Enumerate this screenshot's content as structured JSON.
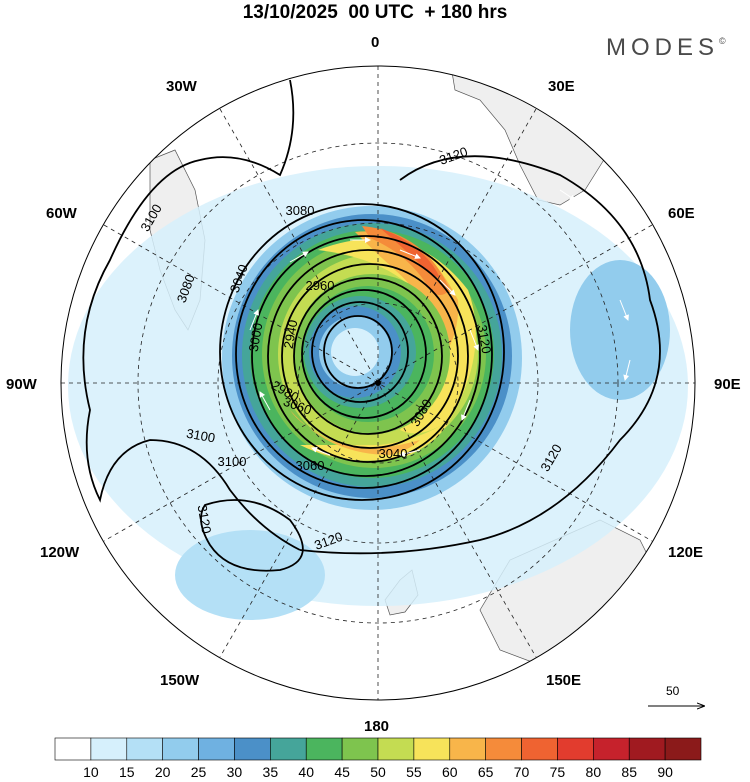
{
  "header": {
    "title": "13/10/2025  00 UTC  + 180 hrs",
    "brand": "MODES",
    "brand_mark": "©"
  },
  "longitude_labels": [
    {
      "key": "lon_0",
      "text": "0"
    },
    {
      "key": "lon_30e",
      "text": "30E"
    },
    {
      "key": "lon_60e",
      "text": "60E"
    },
    {
      "key": "lon_90e",
      "text": "90E"
    },
    {
      "key": "lon_120e",
      "text": "120E"
    },
    {
      "key": "lon_150e",
      "text": "150E"
    },
    {
      "key": "lon_180",
      "text": "180"
    },
    {
      "key": "lon_150w",
      "text": "150W"
    },
    {
      "key": "lon_120w",
      "text": "120W"
    },
    {
      "key": "lon_90w",
      "text": "90W"
    },
    {
      "key": "lon_60w",
      "text": "60W"
    },
    {
      "key": "lon_30w",
      "text": "30W"
    }
  ],
  "contour_labels": [
    "3120",
    "3080",
    "3100",
    "3080",
    "3040",
    "2960",
    "2940",
    "3060",
    "3000",
    "3120",
    "3100",
    "2980",
    "3060",
    "3040",
    "3080",
    "3100",
    "3100",
    "3120",
    "3120",
    "3120"
  ],
  "reference_vector": {
    "label": "50"
  },
  "chart_data": {
    "type": "map",
    "projection": "south polar stereographic",
    "field": "wind speed (shaded) with geopotential height contours",
    "colorbar": {
      "ticks": [
        "10",
        "15",
        "20",
        "25",
        "30",
        "35",
        "40",
        "45",
        "50",
        "55",
        "60",
        "65",
        "70",
        "75",
        "80",
        "85",
        "90"
      ],
      "colors": [
        "#ffffff",
        "#d6f0fc",
        "#b4e0f6",
        "#92cced",
        "#6fb1e1",
        "#4b90c8",
        "#45a59a",
        "#4bb55e",
        "#7ec44e",
        "#c4dc52",
        "#f7e35a",
        "#f8b54a",
        "#f58b3a",
        "#ef6331",
        "#e23c2e",
        "#c6222c",
        "#a01a20",
        "#8b1a1a"
      ]
    },
    "contour_values": [
      2940,
      2960,
      2980,
      3000,
      3040,
      3060,
      3080,
      3100,
      3120
    ]
  }
}
